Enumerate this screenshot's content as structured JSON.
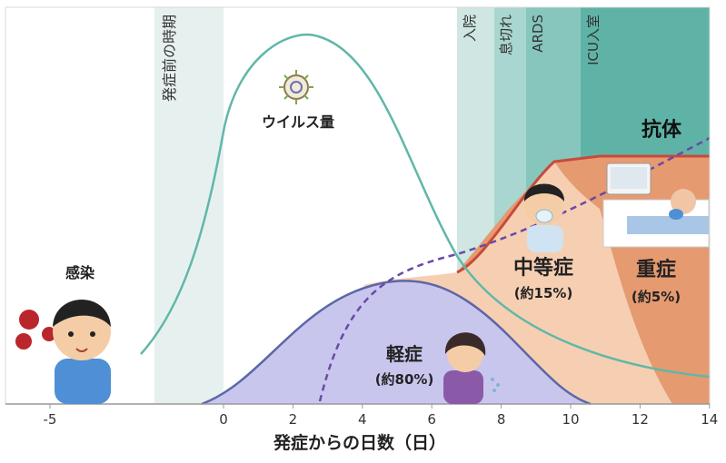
{
  "chart_data": {
    "type": "area",
    "x_ticks": [
      "-5",
      "0",
      "2",
      "4",
      "6",
      "8",
      "10",
      "12",
      "14"
    ],
    "xlabel": "発症からの日数（日）",
    "phases": {
      "presymptomatic": "発症前の時期",
      "hospitalization": "入院",
      "dyspnea": "息切れ",
      "ards": "ARDS",
      "icu": "ICU入室"
    },
    "labels": {
      "viral_load": "ウイルス量",
      "antibody": "抗体",
      "infection": "感染",
      "mild": "軽症",
      "mild_pct": "(約80%)",
      "moderate": "中等症",
      "moderate_pct": "(約15%)",
      "severe": "重症",
      "severe_pct": "(約5%)"
    },
    "colors": {
      "presymptomatic_band": "#e6f1ef",
      "hosp_band": "#cfe6e2",
      "dyspnea_band": "#a9d6d0",
      "ards_band": "#86c6bd",
      "icu_band": "#5fb3a6",
      "mild_fill": "#c9c6ee",
      "mild_line": "#5b67a6",
      "moderate_fill": "#f6cfb2",
      "severe_fill": "#e59a70",
      "severe_line": "#c74a3c",
      "viral_line": "#61b7a9",
      "antibody_line": "#6a4aa6"
    }
  }
}
